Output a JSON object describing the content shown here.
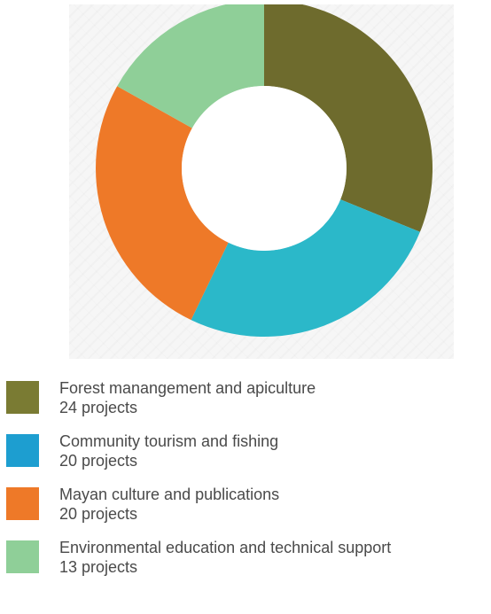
{
  "chart_data": {
    "type": "pie",
    "style": "donut",
    "series": [
      {
        "name": "Forest manangement and apiculture",
        "value": 24,
        "value_label": "24 projects",
        "color": "#6e6b2d",
        "legend_color": "#7a7b33"
      },
      {
        "name": "Community tourism and fishing",
        "value": 20,
        "value_label": "20 projects",
        "color": "#2bb8c9",
        "legend_color": "#1d9ed0"
      },
      {
        "name": "Mayan culture and publications",
        "value": 20,
        "value_label": "20 projects",
        "color": "#ee7928",
        "legend_color": "#ee7928"
      },
      {
        "name": "Environmental education and technical support",
        "value": 13,
        "value_label": "13 projects",
        "color": "#8fcf98",
        "legend_color": "#8fcf98"
      }
    ],
    "start_angle": "12 o'clock",
    "direction": "clockwise",
    "legend_position": "bottom"
  }
}
